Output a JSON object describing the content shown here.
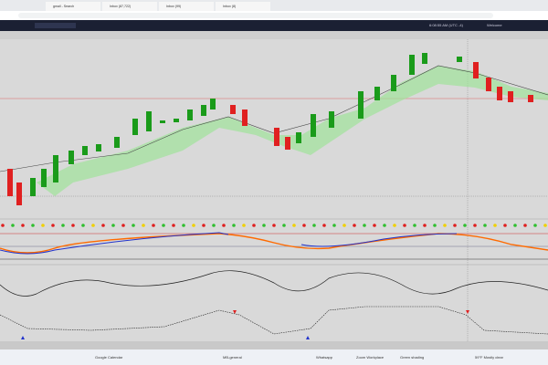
{
  "browser": {
    "tabs": [
      "gmail - Search",
      "Inbox (87,722)",
      "Inbox (99)",
      "Inbox (8)"
    ]
  },
  "toolbar": {
    "time": "6:08:55 AM (UTC -4)",
    "user": "Welcome"
  },
  "taskbar": {
    "apps": [
      "Google Calendar",
      "MB-general",
      "Whatsapp",
      "Zoom Workplace",
      "Green shading"
    ],
    "weather": "59°F Mostly clear"
  }
}
